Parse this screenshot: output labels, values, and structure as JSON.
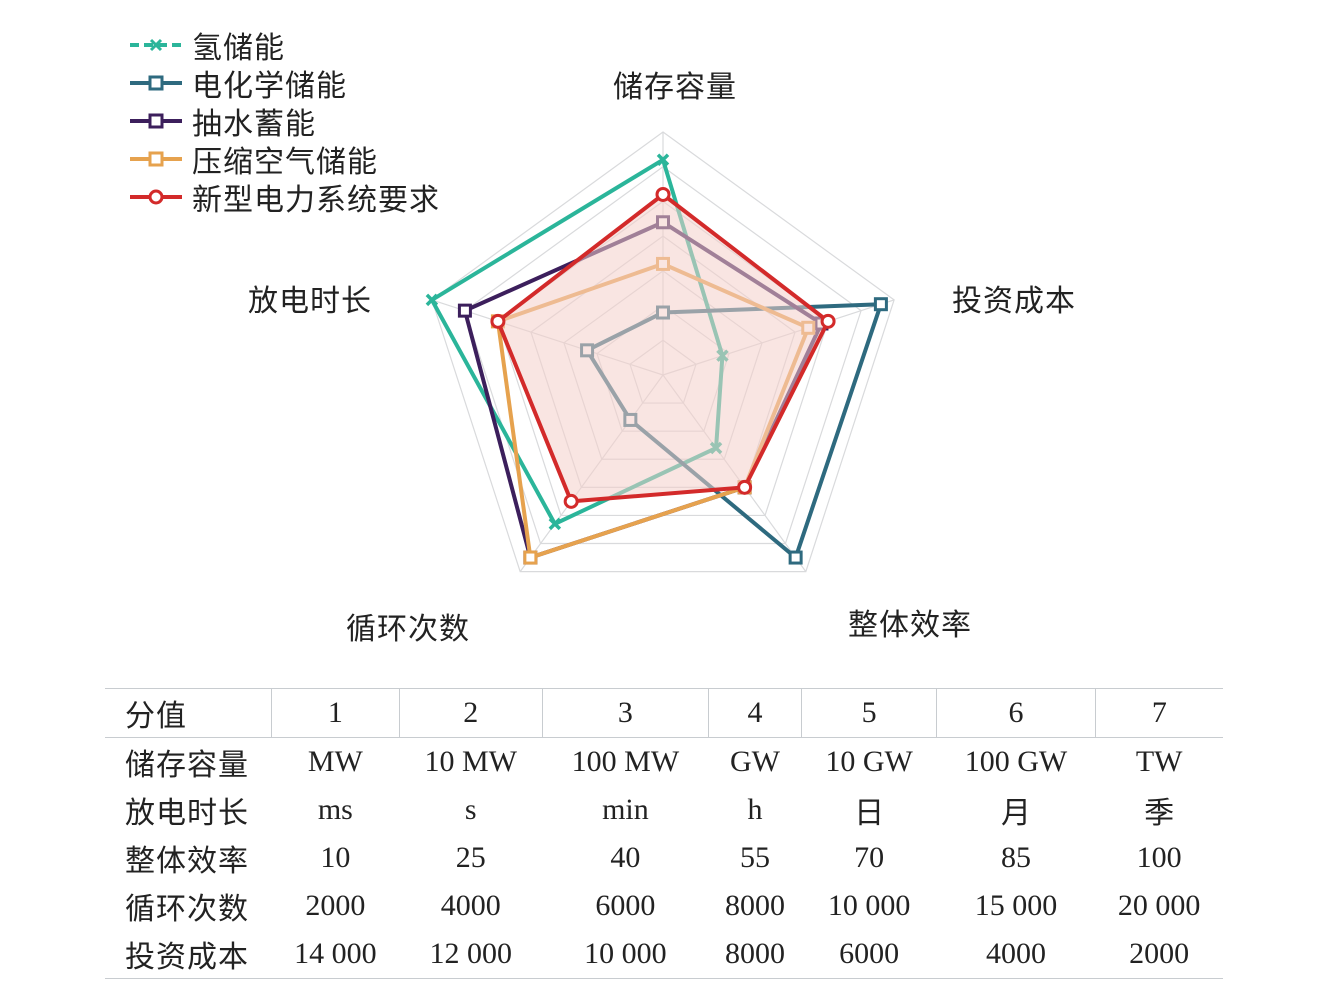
{
  "chart_data": {
    "type": "radar",
    "axes": [
      "储存容量",
      "投资成本",
      "整体效率",
      "循环次数",
      "放电时长"
    ],
    "range": [
      0,
      7
    ],
    "rings": 7,
    "series": [
      {
        "name": "氢储能",
        "color": "#2bb59a",
        "marker": "x",
        "values": [
          6.2,
          1.8,
          2.6,
          5.3,
          7.0
        ]
      },
      {
        "name": "电化学储能",
        "color": "#2e6a7f",
        "marker": "square",
        "values": [
          1.8,
          6.6,
          6.5,
          1.6,
          2.3
        ]
      },
      {
        "name": "抽水蓄能",
        "color": "#3c1f5c",
        "marker": "square",
        "values": [
          4.4,
          4.8,
          4.0,
          6.5,
          6.0
        ]
      },
      {
        "name": "压缩空气储能",
        "color": "#e6a24e",
        "marker": "square",
        "values": [
          3.2,
          4.4,
          4.0,
          6.5,
          5.0
        ]
      },
      {
        "name": "新型电力系统要求",
        "color": "#d32a2a",
        "marker": "circle",
        "fill": "#f4d0ca",
        "values": [
          5.2,
          5.0,
          4.0,
          4.5,
          5.0
        ]
      }
    ]
  },
  "table": {
    "header": [
      "分值",
      "1",
      "2",
      "3",
      "4",
      "5",
      "6",
      "7"
    ],
    "rows": [
      [
        "储存容量",
        "MW",
        "10 MW",
        "100 MW",
        "GW",
        "10 GW",
        "100 GW",
        "TW"
      ],
      [
        "放电时长",
        "ms",
        "s",
        "min",
        "h",
        "日",
        "月",
        "季"
      ],
      [
        "整体效率",
        "10",
        "25",
        "40",
        "55",
        "70",
        "85",
        "100"
      ],
      [
        "循环次数",
        "2000",
        "4000",
        "6000",
        "8000",
        "10 000",
        "15 000",
        "20 000"
      ],
      [
        "投资成本",
        "14 000",
        "12 000",
        "10 000",
        "8000",
        "6000",
        "4000",
        "2000"
      ]
    ]
  }
}
